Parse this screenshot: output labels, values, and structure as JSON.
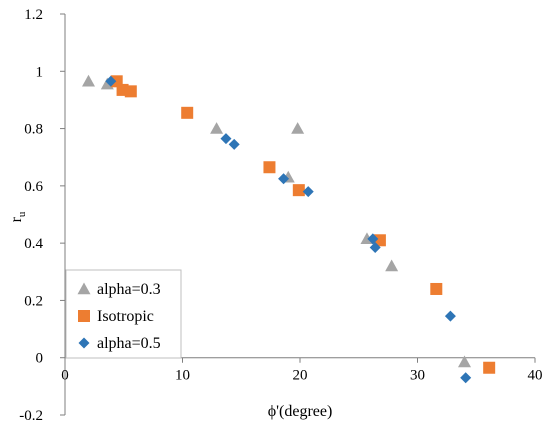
{
  "chart_data": {
    "type": "scatter",
    "title": "",
    "xlabel": "ϕ'(degree)",
    "ylabel": "r",
    "ylabel_subscript": "u",
    "xlim": [
      0,
      40
    ],
    "ylim": [
      -0.2,
      1.2
    ],
    "x_ticks": [
      "0",
      "10",
      "20",
      "30",
      "40"
    ],
    "y_ticks": [
      "-0.2",
      "0",
      "0.2",
      "0.4",
      "0.6",
      "0.8",
      "1",
      "1.2"
    ],
    "grid": false,
    "legend_position": "bottom-left",
    "series": [
      {
        "name": "alpha=0.3",
        "marker": "triangle",
        "color": "#a5a5a5",
        "points": [
          [
            2.0,
            0.965
          ],
          [
            3.6,
            0.955
          ],
          [
            12.9,
            0.8
          ],
          [
            19.0,
            0.63
          ],
          [
            19.8,
            0.8
          ],
          [
            25.7,
            0.415
          ],
          [
            27.8,
            0.32
          ],
          [
            34.0,
            -0.015
          ]
        ]
      },
      {
        "name": "Isotropic",
        "marker": "square",
        "color": "#ed7d31",
        "points": [
          [
            4.4,
            0.965
          ],
          [
            4.9,
            0.935
          ],
          [
            5.6,
            0.93
          ],
          [
            10.4,
            0.855
          ],
          [
            17.4,
            0.665
          ],
          [
            19.9,
            0.585
          ],
          [
            26.8,
            0.41
          ],
          [
            31.6,
            0.24
          ],
          [
            36.1,
            -0.035
          ]
        ]
      },
      {
        "name": "alpha=0.5",
        "marker": "diamond",
        "color": "#2e75b6",
        "points": [
          [
            3.9,
            0.965
          ],
          [
            13.7,
            0.765
          ],
          [
            14.4,
            0.745
          ],
          [
            18.6,
            0.625
          ],
          [
            20.7,
            0.58
          ],
          [
            26.2,
            0.415
          ],
          [
            26.4,
            0.385
          ],
          [
            32.8,
            0.145
          ],
          [
            34.1,
            -0.07
          ]
        ]
      }
    ]
  }
}
